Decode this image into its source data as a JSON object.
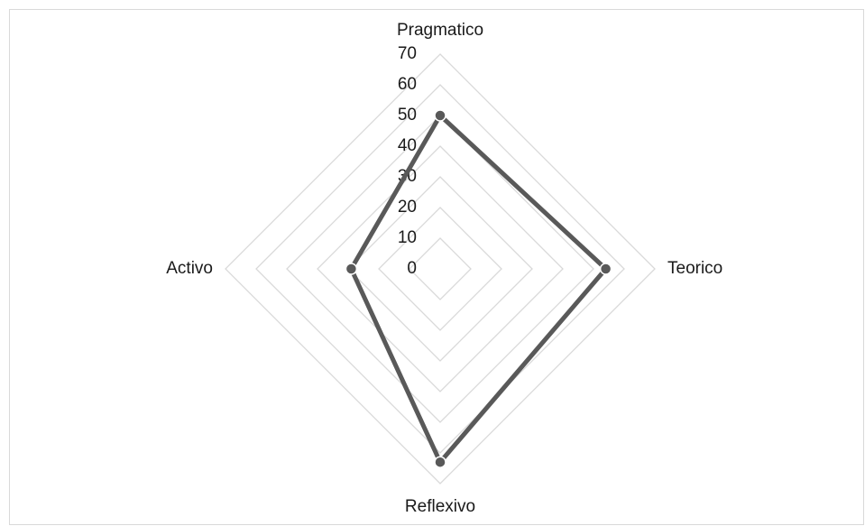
{
  "chart_data": {
    "type": "radar",
    "categories": [
      "Pragmatico",
      "Teorico",
      "Reflexivo",
      "Activo"
    ],
    "values": [
      50,
      54,
      63,
      29
    ],
    "color": "#595959",
    "rlim": [
      0,
      70
    ],
    "rticks": [
      0,
      10,
      20,
      30,
      40,
      50,
      60,
      70
    ],
    "grid": true
  }
}
